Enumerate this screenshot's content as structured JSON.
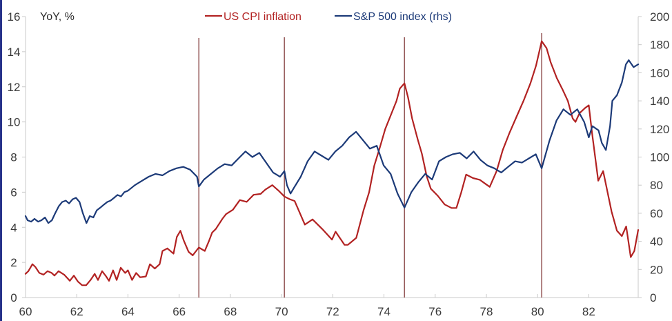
{
  "chart_data": {
    "type": "line",
    "title": "",
    "ylabel": "YoY, %",
    "y2label": "",
    "xlabel": "",
    "xlim": [
      60,
      83.93
    ],
    "ylim": [
      0,
      16
    ],
    "y2lim": [
      0,
      200
    ],
    "x_ticks": [
      "60",
      "62",
      "64",
      "66",
      "68",
      "70",
      "72",
      "74",
      "76",
      "78",
      "80",
      "82"
    ],
    "x_tick_values": [
      60,
      62,
      64,
      66,
      68,
      70,
      72,
      74,
      76,
      78,
      80,
      82
    ],
    "y_ticks": [
      "0",
      "2",
      "4",
      "6",
      "8",
      "10",
      "12",
      "14",
      "16"
    ],
    "y_tick_values": [
      0,
      2,
      4,
      6,
      8,
      10,
      12,
      14,
      16
    ],
    "y2_ticks": [
      "0",
      "20",
      "40",
      "60",
      "80",
      "100",
      "120",
      "140",
      "160",
      "180",
      "200"
    ],
    "y2_tick_values": [
      0,
      20,
      40,
      60,
      80,
      100,
      120,
      140,
      160,
      180,
      200
    ],
    "grid": false,
    "legend_position": "top-center",
    "vertical_markers": [
      66.77,
      70.11,
      74.8,
      80.16
    ],
    "series": [
      {
        "name": "US CPI inflation",
        "axis": "left",
        "color": "#b22222",
        "x": [
          60.0,
          60.11,
          60.27,
          60.38,
          60.54,
          60.7,
          60.86,
          61.02,
          61.13,
          61.29,
          61.51,
          61.73,
          61.89,
          62.05,
          62.21,
          62.37,
          62.54,
          62.7,
          62.83,
          62.99,
          63.15,
          63.26,
          63.42,
          63.56,
          63.72,
          63.89,
          64.0,
          64.16,
          64.32,
          64.48,
          64.7,
          64.86,
          65.05,
          65.24,
          65.35,
          65.54,
          65.78,
          65.91,
          66.05,
          66.18,
          66.37,
          66.53,
          66.77,
          67.0,
          67.16,
          67.29,
          67.43,
          67.7,
          67.83,
          68.1,
          68.37,
          68.64,
          68.91,
          69.18,
          69.37,
          69.64,
          69.91,
          70.11,
          70.32,
          70.51,
          70.91,
          71.21,
          71.59,
          71.97,
          72.11,
          72.46,
          72.59,
          72.92,
          73.2,
          73.42,
          73.62,
          73.83,
          74.05,
          74.3,
          74.49,
          74.62,
          74.8,
          74.94,
          75.1,
          75.32,
          75.48,
          75.67,
          75.83,
          76.1,
          76.37,
          76.64,
          76.83,
          77.02,
          77.21,
          77.48,
          77.75,
          77.94,
          78.13,
          78.4,
          78.64,
          78.91,
          79.18,
          79.45,
          79.72,
          79.94,
          80.16,
          80.35,
          80.51,
          80.75,
          80.99,
          81.18,
          81.37,
          81.48,
          81.64,
          81.86,
          82.0,
          82.13,
          82.37,
          82.56,
          82.89,
          83.1,
          83.29,
          83.46,
          83.64,
          83.78,
          83.93
        ],
        "values": [
          1.35,
          1.5,
          1.9,
          1.75,
          1.4,
          1.3,
          1.5,
          1.4,
          1.25,
          1.5,
          1.3,
          0.95,
          1.25,
          0.9,
          0.7,
          0.7,
          1.0,
          1.35,
          1.0,
          1.5,
          1.2,
          0.95,
          1.55,
          1.0,
          1.7,
          1.4,
          1.55,
          1.0,
          1.4,
          1.15,
          1.2,
          1.9,
          1.65,
          1.9,
          2.65,
          2.8,
          2.5,
          3.45,
          3.8,
          3.25,
          2.6,
          2.4,
          2.85,
          2.65,
          3.2,
          3.7,
          3.9,
          4.5,
          4.75,
          5.0,
          5.55,
          5.45,
          5.85,
          5.9,
          6.15,
          6.4,
          6.05,
          5.75,
          5.6,
          5.5,
          4.15,
          4.45,
          3.9,
          3.3,
          3.75,
          3.0,
          3.0,
          3.4,
          4.95,
          6.0,
          7.5,
          8.5,
          9.6,
          10.5,
          11.2,
          11.9,
          12.2,
          11.4,
          10.2,
          9.0,
          8.2,
          6.9,
          6.2,
          5.8,
          5.3,
          5.1,
          5.1,
          6.0,
          7.0,
          6.8,
          6.7,
          6.5,
          6.3,
          7.2,
          8.4,
          9.4,
          10.3,
          11.2,
          12.2,
          13.2,
          14.6,
          14.2,
          13.4,
          12.5,
          11.8,
          11.2,
          10.2,
          10.0,
          10.5,
          10.8,
          10.95,
          9.35,
          6.65,
          7.2,
          4.9,
          3.8,
          3.5,
          4.05,
          2.3,
          2.65,
          3.85
        ]
      },
      {
        "name": "S&P 500 index (rhs)",
        "axis": "right",
        "color": "#1c3a78",
        "x": [
          60.0,
          60.08,
          60.22,
          60.35,
          60.49,
          60.62,
          60.76,
          60.89,
          61.03,
          61.16,
          61.3,
          61.43,
          61.57,
          61.7,
          61.84,
          61.97,
          62.11,
          62.24,
          62.38,
          62.51,
          62.65,
          62.78,
          62.92,
          63.05,
          63.19,
          63.32,
          63.46,
          63.59,
          63.73,
          63.86,
          64.0,
          64.27,
          64.54,
          64.81,
          65.08,
          65.35,
          65.62,
          65.89,
          66.16,
          66.43,
          66.7,
          66.77,
          66.97,
          67.24,
          67.51,
          67.78,
          68.05,
          68.32,
          68.59,
          68.86,
          69.13,
          69.4,
          69.67,
          69.94,
          70.11,
          70.21,
          70.35,
          70.48,
          70.75,
          71.02,
          71.29,
          71.56,
          71.83,
          72.1,
          72.37,
          72.64,
          72.91,
          73.18,
          73.45,
          73.72,
          73.99,
          74.26,
          74.53,
          74.8,
          75.07,
          75.34,
          75.61,
          75.88,
          76.15,
          76.42,
          76.69,
          76.96,
          77.23,
          77.5,
          77.77,
          78.04,
          78.31,
          78.58,
          78.85,
          79.12,
          79.39,
          79.66,
          79.93,
          80.16,
          80.47,
          80.74,
          81.01,
          81.28,
          81.55,
          81.82,
          82.0,
          82.14,
          82.38,
          82.51,
          82.67,
          82.83,
          82.92,
          83.1,
          83.29,
          83.45,
          83.56,
          83.75,
          83.93
        ],
        "values": [
          58,
          55,
          54,
          56,
          54,
          55,
          57,
          53,
          55,
          60,
          65,
          68,
          69,
          67,
          70,
          71,
          68,
          60,
          53,
          58,
          57,
          62,
          64,
          66,
          68,
          69,
          71,
          73,
          72,
          75,
          76,
          80,
          83,
          86,
          88,
          87,
          90,
          92,
          93,
          91,
          86,
          79,
          84,
          88,
          92,
          95,
          94,
          99,
          104,
          100,
          103,
          96,
          89,
          86,
          90,
          80,
          74,
          78,
          86,
          97,
          104,
          101,
          98,
          104,
          108,
          114,
          118,
          112,
          106,
          108,
          94,
          88,
          74,
          64,
          75,
          82,
          88,
          84,
          97,
          100,
          102,
          103,
          99,
          104,
          98,
          94,
          92,
          89,
          93,
          97,
          96,
          99,
          102,
          92,
          112,
          126,
          134,
          130,
          134,
          125,
          114,
          122,
          119,
          110,
          105,
          122,
          140,
          144,
          153,
          166,
          169,
          164,
          166
        ]
      }
    ]
  }
}
